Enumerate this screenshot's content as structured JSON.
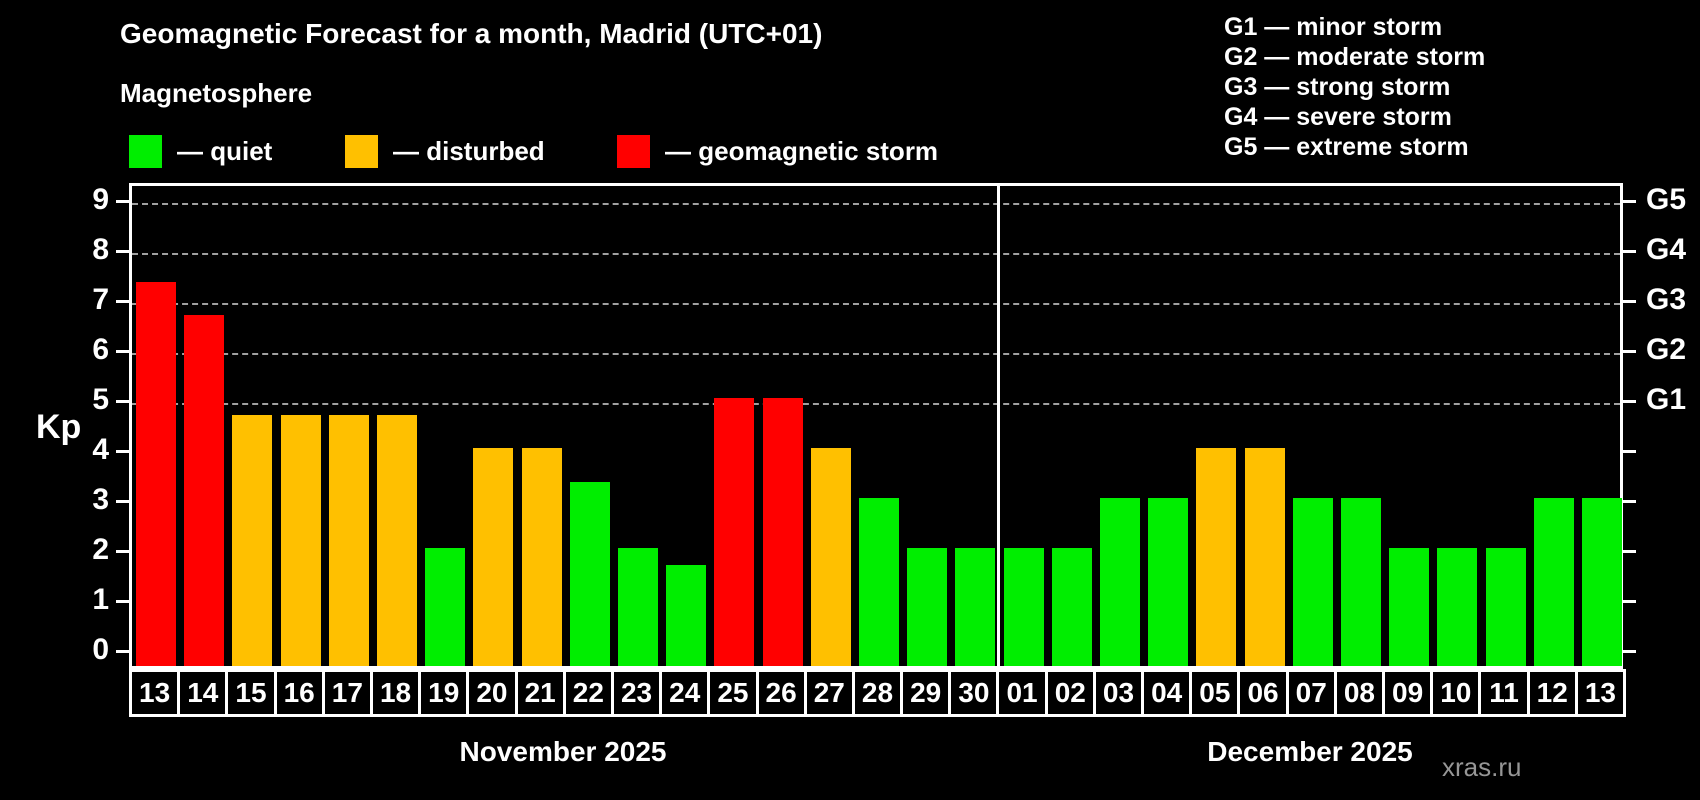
{
  "header": {
    "title": "Geomagnetic Forecast for a month, Madrid (UTC+01)",
    "subtitle": "Magnetosphere"
  },
  "legend": {
    "items": [
      {
        "name": "quiet",
        "label": "— quiet",
        "color": "#00ee00"
      },
      {
        "name": "disturbed",
        "label": "— disturbed",
        "color": "#ffc000"
      },
      {
        "name": "storm",
        "label": "— geomagnetic storm",
        "color": "#ff0000"
      }
    ]
  },
  "g_scale_legend": {
    "items": [
      {
        "label": "G1 — minor storm"
      },
      {
        "label": "G2 — moderate storm"
      },
      {
        "label": "G3 — strong storm"
      },
      {
        "label": "G4 — severe storm"
      },
      {
        "label": "G5 — extreme storm"
      }
    ]
  },
  "chart_data": {
    "type": "bar",
    "title": "Geomagnetic Forecast for a month, Madrid (UTC+01)",
    "ylabel": "Kp",
    "ylim": [
      0,
      9
    ],
    "grid": "horizontal dashed lines at Kp 5 to 9 (G1 to G5)",
    "legend_position": "top-left",
    "left_ticks": [
      0,
      1,
      2,
      3,
      4,
      5,
      6,
      7,
      8,
      9
    ],
    "right_axis_labels": [
      {
        "label": "G1",
        "kp": 5
      },
      {
        "label": "G2",
        "kp": 6
      },
      {
        "label": "G3",
        "kp": 7
      },
      {
        "label": "G4",
        "kp": 8
      },
      {
        "label": "G5",
        "kp": 9
      }
    ],
    "months": [
      {
        "label": "November 2025",
        "days": 18
      },
      {
        "label": "December 2025",
        "days": 13
      }
    ],
    "categories": [
      "13",
      "14",
      "15",
      "16",
      "17",
      "18",
      "19",
      "20",
      "21",
      "22",
      "23",
      "24",
      "25",
      "26",
      "27",
      "28",
      "29",
      "30",
      "01",
      "02",
      "03",
      "04",
      "05",
      "06",
      "07",
      "08",
      "09",
      "10",
      "11",
      "12",
      "13"
    ],
    "values": [
      7.33,
      6.67,
      4.67,
      4.67,
      4.67,
      4.67,
      2,
      4,
      4,
      3.33,
      2,
      1.67,
      5,
      5,
      4,
      3,
      2,
      2,
      2,
      2,
      3,
      3,
      4,
      4,
      3,
      3,
      2,
      2,
      2,
      3,
      3
    ],
    "status": [
      "storm",
      "storm",
      "disturbed",
      "disturbed",
      "disturbed",
      "disturbed",
      "quiet",
      "disturbed",
      "disturbed",
      "quiet",
      "quiet",
      "quiet",
      "storm",
      "storm",
      "disturbed",
      "quiet",
      "quiet",
      "quiet",
      "quiet",
      "quiet",
      "quiet",
      "quiet",
      "disturbed",
      "disturbed",
      "quiet",
      "quiet",
      "quiet",
      "quiet",
      "quiet",
      "quiet",
      "quiet"
    ],
    "status_colors": {
      "quiet": "#00ee00",
      "disturbed": "#ffc000",
      "storm": "#ff0000"
    }
  },
  "watermark": "xras.ru"
}
